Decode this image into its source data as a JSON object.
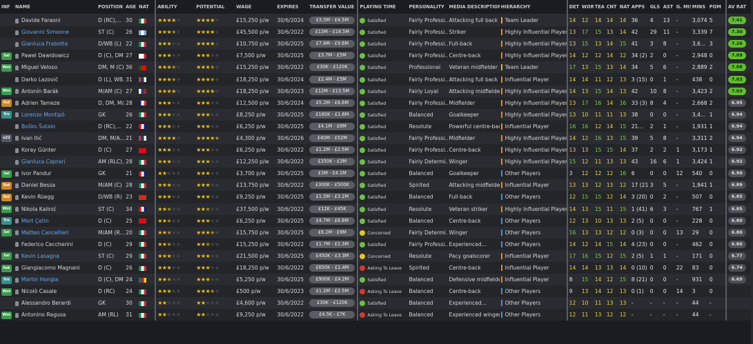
{
  "columns": [
    "INF",
    "NAME",
    "POSITION",
    "AGE",
    "NAT",
    "ABILITY",
    "POTENTIAL",
    "WAGE",
    "EXPIRES",
    "TRANSFER VALUE",
    "PLAYING TIME",
    "PERSONALITY",
    "MEDIA DESCRIPTION",
    "HIERARCHY",
    "DET",
    "WOR",
    "TEA",
    "CNT",
    "NAT",
    "APPS",
    "GLS",
    "AST",
    "G. MIS",
    "MINS",
    "POM",
    "AV RAT"
  ],
  "rows": [
    {
      "inf": "",
      "name": "Davide Faraoni",
      "blue": false,
      "pos": "D (RC),...",
      "age": "30",
      "flag": "it",
      "ab": 4,
      "abh": 0,
      "pot": 4,
      "poth": 0,
      "wage": "£15,250 p/w",
      "exp": "30/6/2024",
      "tv": "£3.5M - £4.5M",
      "pt": "Satisfied",
      "ptc": "green",
      "pers": "Fairly Professi...",
      "media": "Attacking full back",
      "hier": "Team Leader",
      "hc": "leader",
      "det": "14",
      "wor": "12",
      "tea": "14",
      "cnt": "14",
      "nat": "14",
      "apps": "36",
      "gls": "4",
      "ast": "13",
      "gmis": "-",
      "mins": "3,074",
      "pom": "5",
      "avr": "7.41",
      "rh": true
    },
    {
      "inf": "",
      "name": "Giovanni Simeone",
      "blue": true,
      "pos": "ST (C)",
      "age": "26",
      "flag": "ar",
      "ab": 3,
      "abh": 1,
      "pot": 4,
      "poth": 0,
      "wage": "£45,500 p/w",
      "exp": "30/6/2022",
      "tv": "£13M - £18.5M",
      "pt": "Satisfied",
      "ptc": "green",
      "pers": "Fairly Professi...",
      "media": "Striker",
      "hier": "Highly Influential Player",
      "hc": "high",
      "det": "13",
      "wor": "17",
      "tea": "15",
      "cnt": "13",
      "nat": "14",
      "apps": "42",
      "gls": "29",
      "ast": "11",
      "gmis": "-",
      "mins": "3,339",
      "pom": "7",
      "avr": "7.30",
      "rh": true
    },
    {
      "inf": "",
      "name": "Gianluca Frabotta",
      "blue": true,
      "pos": "D/WB (L)",
      "age": "22",
      "flag": "it",
      "ab": 3,
      "abh": 0,
      "pot": 4,
      "poth": 0,
      "wage": "£10,750 p/w",
      "exp": "30/6/2025",
      "tv": "£7.8M - £9.6M",
      "pt": "Satisfied",
      "ptc": "green",
      "pers": "Fairly Professi...",
      "media": "Full-back",
      "hier": "Highly Influential Player",
      "hc": "high",
      "det": "13",
      "wor": "15",
      "tea": "13",
      "cnt": "14",
      "nat": "15",
      "apps": "41",
      "gls": "3",
      "ast": "8",
      "gmis": "-",
      "mins": "3,6...",
      "pom": "3",
      "avr": "7.26",
      "rh": true
    },
    {
      "inf": "Sel",
      "name": "Pawel Dawidowicz",
      "blue": false,
      "pos": "D (C), DM",
      "age": "27",
      "flag": "pl",
      "ab": 3,
      "abh": 0,
      "pot": 3,
      "poth": 0,
      "wage": "£7,500 p/w",
      "exp": "30/6/2025",
      "tv": "£3.7M - £5M",
      "pt": "Satisfied",
      "ptc": "green",
      "pers": "Fairly Professi...",
      "media": "Centre-back",
      "hier": "Highly Influential Player",
      "hc": "high",
      "det": "14",
      "wor": "12",
      "tea": "12",
      "cnt": "14",
      "nat": "12",
      "apps": "34 (2)",
      "gls": "2",
      "ast": "0",
      "gmis": "-",
      "mins": "2,948",
      "pom": "0",
      "avr": "7.09",
      "rh": true
    },
    {
      "inf": "Wnt",
      "name": "Miguel Veloso",
      "blue": false,
      "pos": "DM, M (C)",
      "age": "36",
      "flag": "pt",
      "ab": 3,
      "abh": 1,
      "pot": 3,
      "poth": 1,
      "wage": "£15,250 p/w",
      "exp": "30/6/2022",
      "tv": "£30K - £120K",
      "pt": "Satisfied",
      "ptc": "green",
      "pers": "Professional",
      "media": "Veteran midfielder",
      "hier": "Team Leader",
      "hc": "leader",
      "det": "17",
      "wor": "13",
      "tea": "15",
      "cnt": "13",
      "nat": "14",
      "apps": "34",
      "gls": "5",
      "ast": "6",
      "gmis": "-",
      "mins": "2,889",
      "pom": "2",
      "avr": "7.08",
      "rh": true
    },
    {
      "inf": "",
      "name": "Darko Lazović",
      "blue": false,
      "pos": "D (L), WB...",
      "age": "31",
      "flag": "rs",
      "ab": 3,
      "abh": 1,
      "pot": 3,
      "poth": 1,
      "wage": "£18,250 p/w",
      "exp": "30/6/2024",
      "tv": "£2.4M - £5M",
      "pt": "Satisfied",
      "ptc": "green",
      "pers": "Fairly Professi...",
      "media": "Attacking full back",
      "hier": "Influential Player",
      "hc": "inf",
      "det": "14",
      "wor": "14",
      "tea": "11",
      "cnt": "12",
      "nat": "13",
      "apps": "3 (15)",
      "gls": "0",
      "ast": "1",
      "gmis": "-",
      "mins": "438",
      "pom": "0",
      "avr": "7.03",
      "rh": true
    },
    {
      "inf": "Wnt",
      "name": "Antonín Barák",
      "blue": false,
      "pos": "M/AM (C)",
      "age": "27",
      "flag": "cz",
      "ab": 4,
      "abh": 0,
      "pot": 4,
      "poth": 0,
      "wage": "£18,250 p/w",
      "exp": "30/6/2023",
      "tv": "£12M - £13.5M",
      "pt": "Satisfied",
      "ptc": "green",
      "pers": "Fairly Loyal",
      "media": "Attacking midfielder",
      "hier": "Highly Influential Player",
      "hc": "high",
      "det": "14",
      "wor": "13",
      "tea": "15",
      "cnt": "14",
      "nat": "13",
      "apps": "42",
      "gls": "10",
      "ast": "8",
      "gmis": "-",
      "mins": "3,423",
      "pom": "2",
      "avr": "7.03",
      "rh": true
    },
    {
      "inf": "Rst",
      "name": "Adrien Tameze",
      "blue": false,
      "pos": "D, DM, M/A...",
      "age": "28",
      "flag": "fr",
      "ab": 3,
      "abh": 0,
      "pot": 3,
      "poth": 0,
      "wage": "£12,500 p/w",
      "exp": "30/6/2024",
      "tv": "£5.2M - £6.6M",
      "pt": "Satisfied",
      "ptc": "green",
      "pers": "Fairly Professi...",
      "media": "Midfielder",
      "hier": "Highly Influential Player",
      "hc": "high",
      "det": "13",
      "wor": "17",
      "tea": "16",
      "cnt": "14",
      "nat": "16",
      "apps": "33 (3)",
      "gls": "8",
      "ast": "4",
      "gmis": "-",
      "mins": "2,668",
      "pom": "2",
      "avr": "6.95",
      "rh": false
    },
    {
      "inf": "Trn",
      "name": "Lorenzo Montipò",
      "blue": true,
      "pos": "GK",
      "age": "26",
      "flag": "it",
      "ab": 3,
      "abh": 0,
      "pot": 3,
      "poth": 0,
      "wage": "£8,250 p/w",
      "exp": "30/6/2025",
      "tv": "£160K - £1.6M",
      "pt": "Satisfied",
      "ptc": "green",
      "pers": "Balanced",
      "media": "Goalkeeper",
      "hier": "Highly Influential Player",
      "hc": "high",
      "det": "13",
      "wor": "10",
      "tea": "11",
      "cnt": "11",
      "nat": "13",
      "apps": "38",
      "gls": "0",
      "ast": "0",
      "gmis": "-",
      "mins": "3,4...",
      "pom": "1",
      "avr": "6.94",
      "rh": false
    },
    {
      "inf": "",
      "name": "Boško Šutalo",
      "blue": true,
      "pos": "D (RC),...",
      "age": "22",
      "flag": "hr",
      "ab": 3,
      "abh": 0,
      "pot": 3,
      "poth": 0,
      "wage": "£6,250 p/w",
      "exp": "30/6/2025",
      "tv": "£4.1M - £6M",
      "pt": "Satisfied",
      "ptc": "green",
      "pers": "Resolute",
      "media": "Powerful centre-back",
      "hier": "Influential Player",
      "hc": "inf",
      "det": "16",
      "wor": "16",
      "tea": "12",
      "cnt": "14",
      "nat": "15",
      "apps": "21...",
      "gls": "2",
      "ast": "1",
      "gmis": "-",
      "mins": "1,931",
      "pom": "1",
      "avr": "6.94",
      "rh": false
    },
    {
      "inf": "u22",
      "name": "Ivan Ilić",
      "blue": false,
      "pos": "DM, M/A...",
      "age": "21",
      "flag": "rs",
      "ab": 4,
      "abh": 0,
      "pot": 4,
      "poth": 1,
      "wage": "£4,300 p/w",
      "exp": "30/6/2026",
      "tv": "£40M - £52M",
      "pt": "Satisfied",
      "ptc": "green",
      "pers": "Fairly Professi...",
      "media": "Midfielder",
      "hier": "Highly Influential Player",
      "hc": "high",
      "det": "14",
      "wor": "12",
      "tea": "16",
      "cnt": "13",
      "nat": "15",
      "apps": "39",
      "gls": "5",
      "ast": "8",
      "gmis": "-",
      "mins": "3,311",
      "pom": "2",
      "avr": "6.94",
      "rh": false
    },
    {
      "inf": "",
      "name": "Koray Günter",
      "blue": false,
      "pos": "D (C)",
      "age": "27",
      "flag": "tr",
      "ab": 3,
      "abh": 0,
      "pot": 3,
      "poth": 0,
      "wage": "£6,250 p/w",
      "exp": "30/6/2022",
      "tv": "£1.2M - £2.5M",
      "pt": "Satisfied",
      "ptc": "green",
      "pers": "Fairly Professi...",
      "media": "Centre-back",
      "hier": "Highly Influential Player",
      "hc": "high",
      "det": "13",
      "wor": "13",
      "tea": "15",
      "cnt": "15",
      "nat": "14",
      "apps": "37",
      "gls": "2",
      "ast": "2",
      "gmis": "1",
      "mins": "3,173",
      "pom": "1",
      "avr": "6.92",
      "rh": false
    },
    {
      "inf": "",
      "name": "Gianluca Caprari",
      "blue": true,
      "pos": "AM (RLC),...",
      "age": "28",
      "flag": "it",
      "ab": 3,
      "abh": 0,
      "pot": 3,
      "poth": 0,
      "wage": "£12,250 p/w",
      "exp": "30/6/2022",
      "tv": "£350K - £3M",
      "pt": "Satisfied",
      "ptc": "green",
      "pers": "Fairly Determi...",
      "media": "Winger",
      "hier": "Highly Influential Player",
      "hc": "high",
      "det": "15",
      "wor": "12",
      "tea": "11",
      "cnt": "13",
      "nat": "13",
      "apps": "43",
      "gls": "16",
      "ast": "6",
      "gmis": "1",
      "mins": "3,424",
      "pom": "1",
      "avr": "6.92",
      "rh": false
    },
    {
      "inf": "Sel",
      "name": "Ivor Pandur",
      "blue": false,
      "pos": "GK",
      "age": "21",
      "flag": "hr",
      "ab": 2,
      "abh": 0,
      "pot": 3,
      "poth": 0,
      "wage": "£3,700 p/w",
      "exp": "30/6/2025",
      "tv": "£3M - £4.1M",
      "pt": "Satisfied",
      "ptc": "green",
      "pers": "Balanced",
      "media": "Goalkeeper",
      "hier": "Other Players",
      "hc": "other",
      "det": "3",
      "wor": "12",
      "tea": "12",
      "cnt": "12",
      "nat": "16",
      "apps": "6",
      "gls": "0",
      "ast": "0",
      "gmis": "12",
      "mins": "540",
      "pom": "0",
      "avr": "6.90",
      "rh": false
    },
    {
      "inf": "Rst",
      "name": "Daniel Bessa",
      "blue": false,
      "pos": "M/AM (C)",
      "age": "28",
      "flag": "it",
      "ab": 3,
      "abh": 0,
      "pot": 3,
      "poth": 0,
      "wage": "£13,750 p/w",
      "exp": "30/6/2022",
      "tv": "£300K - £500K",
      "pt": "Satisfied",
      "ptc": "green",
      "pers": "Spirited",
      "media": "Attacking midfielder",
      "hier": "Influential Player",
      "hc": "inf",
      "det": "13",
      "wor": "13",
      "tea": "12",
      "cnt": "13",
      "nat": "12",
      "apps": "17 (21)",
      "gls": "3",
      "ast": "5",
      "gmis": "-",
      "mins": "1,941",
      "pom": "1",
      "avr": "6.89",
      "rh": false
    },
    {
      "inf": "Rst",
      "name": "Kevin Rüegg",
      "blue": false,
      "pos": "D/WB (R)",
      "age": "23",
      "flag": "ch",
      "ab": 3,
      "abh": 0,
      "pot": 3,
      "poth": 0,
      "wage": "£9,250 p/w",
      "exp": "30/6/2025",
      "tv": "£1.5M - £3.2M",
      "pt": "Satisfied",
      "ptc": "green",
      "pers": "Balanced",
      "media": "Full-back",
      "hier": "Other Players",
      "hc": "other",
      "det": "12",
      "wor": "15",
      "tea": "15",
      "cnt": "12",
      "nat": "14",
      "apps": "3 (20)",
      "gls": "0",
      "ast": "2",
      "gmis": "-",
      "mins": "507",
      "pom": "0",
      "avr": "6.85",
      "rh": false
    },
    {
      "inf": "Wnt",
      "name": "Nikola Kalinić",
      "blue": false,
      "pos": "ST (C)",
      "age": "34",
      "flag": "hr",
      "ab": 2,
      "abh": 1,
      "pot": 2,
      "poth": 1,
      "wage": "£37,500 p/w",
      "exp": "30/6/2022",
      "tv": "£12K - £45K",
      "pt": "Satisfied",
      "ptc": "green",
      "pers": "Resolute",
      "media": "Veteran striker",
      "hier": "Highly Influential Player",
      "hc": "high",
      "det": "14",
      "wor": "13",
      "tea": "15",
      "cnt": "11",
      "nat": "15",
      "apps": "1 (41)",
      "gls": "6",
      "ast": "3",
      "gmis": "-",
      "mins": "767",
      "pom": "1",
      "avr": "6.85",
      "rh": false
    },
    {
      "inf": "Trn",
      "name": "Mert Çetin",
      "blue": true,
      "pos": "D (C)",
      "age": "25",
      "flag": "tr",
      "ab": 2,
      "abh": 1,
      "pot": 3,
      "poth": 0,
      "wage": "£6,250 p/w",
      "exp": "30/6/2025",
      "tv": "£4.7M - £6.8M",
      "pt": "Satisfied",
      "ptc": "green",
      "pers": "Balanced",
      "media": "Centre-back",
      "hier": "Other Players",
      "hc": "other",
      "det": "12",
      "wor": "13",
      "tea": "10",
      "cnt": "13",
      "nat": "13",
      "apps": "2 (5)",
      "gls": "0",
      "ast": "0",
      "gmis": "-",
      "mins": "228",
      "pom": "0",
      "avr": "6.80",
      "rh": false
    },
    {
      "inf": "Sel",
      "name": "Matteo Cancellieri",
      "blue": true,
      "pos": "M/AM (R...",
      "age": "20",
      "flag": "it",
      "ab": 2,
      "abh": 1,
      "pot": 3,
      "poth": 1,
      "wage": "£15,750 p/w",
      "exp": "30/6/2025",
      "tv": "£6.2M - £9M",
      "pt": "Concerned",
      "ptc": "yellow",
      "pers": "Fairly Determi...",
      "media": "Winger",
      "hier": "Other Players",
      "hc": "other",
      "det": "16",
      "wor": "13",
      "tea": "13",
      "cnt": "12",
      "nat": "12",
      "apps": "0 (3)",
      "gls": "0",
      "ast": "0",
      "gmis": "13",
      "mins": "29",
      "pom": "0",
      "avr": "6.80",
      "rh": false
    },
    {
      "inf": "",
      "name": "Federico Ceccherini",
      "blue": false,
      "pos": "D (C)",
      "age": "29",
      "flag": "it",
      "ab": 2,
      "abh": 1,
      "pot": 2,
      "poth": 1,
      "wage": "£15,250 p/w",
      "exp": "30/6/2022",
      "tv": "£1.7M - £2.3M",
      "pt": "Satisfied",
      "ptc": "green",
      "pers": "Fairly Professi...",
      "media": "Experienced...",
      "hier": "Other Players",
      "hc": "other",
      "det": "14",
      "wor": "12",
      "tea": "14",
      "cnt": "15",
      "nat": "14",
      "apps": "4 (23)",
      "gls": "0",
      "ast": "0",
      "gmis": "-",
      "mins": "462",
      "pom": "0",
      "avr": "6.80",
      "rh": false
    },
    {
      "inf": "Sel",
      "name": "Kevin Lasagna",
      "blue": true,
      "pos": "ST (C)",
      "age": "29",
      "flag": "it",
      "ab": 3,
      "abh": 0,
      "pot": 3,
      "poth": 0,
      "wage": "£21,500 p/w",
      "exp": "30/6/2025",
      "tv": "£450K - £3.3M",
      "pt": "Concerned",
      "ptc": "yellow",
      "pers": "Resolute",
      "media": "Pacy goalscorer",
      "hier": "Influential Player",
      "hc": "inf",
      "det": "17",
      "wor": "16",
      "tea": "15",
      "cnt": "12",
      "nat": "15",
      "apps": "2 (5)",
      "gls": "1",
      "ast": "1",
      "gmis": "-",
      "mins": "171",
      "pom": "0",
      "avr": "6.77",
      "rh": false
    },
    {
      "inf": "Ask",
      "name": "Giangiacomo Magnani",
      "blue": false,
      "pos": "D (C)",
      "age": "26",
      "flag": "it",
      "ab": 3,
      "abh": 0,
      "pot": 3,
      "poth": 0,
      "wage": "£18,250 p/w",
      "exp": "30/6/2022",
      "tv": "£650K - £1.4M",
      "pt": "Asking To Leave",
      "ptc": "red",
      "pers": "Spirited",
      "media": "Centre-back",
      "hier": "Influential Player",
      "hc": "inf",
      "det": "14",
      "wor": "14",
      "tea": "13",
      "cnt": "13",
      "nat": "14",
      "apps": "0 (10)",
      "gls": "0",
      "ast": "0",
      "gmis": "22",
      "mins": "83",
      "pom": "0",
      "avr": "6.74",
      "rh": false
    },
    {
      "inf": "Trn",
      "name": "Martin Hongla",
      "blue": true,
      "pos": "D (C), DM",
      "age": "24",
      "flag": "cm",
      "ab": 2,
      "abh": 1,
      "pot": 3,
      "poth": 0,
      "wage": "£5,250 p/w",
      "exp": "30/6/2025",
      "tv": "£900K - £4.2M",
      "pt": "Satisfied",
      "ptc": "green",
      "pers": "Balanced",
      "media": "Defensive midfielder",
      "hier": "Influential Player",
      "hc": "inf",
      "det": "8",
      "wor": "15",
      "tea": "14",
      "cnt": "12",
      "nat": "15",
      "apps": "8 (21)",
      "gls": "0",
      "ast": "0",
      "gmis": "-",
      "mins": "931",
      "pom": "0",
      "avr": "6.69",
      "rh": false
    },
    {
      "inf": "Wnt",
      "name": "Nicolò Casale",
      "blue": false,
      "pos": "D (RC)",
      "age": "24",
      "flag": "it",
      "ab": 3,
      "abh": 0,
      "pot": 3,
      "poth": 1,
      "wage": "£500 p/w",
      "exp": "30/6/2023",
      "tv": "£1.2M - £2.5M",
      "pt": "Asking To Leave",
      "ptc": "red",
      "pers": "Balanced",
      "media": "Centre-back",
      "hier": "Other Players",
      "hc": "other",
      "det": "9",
      "wor": "13",
      "tea": "14",
      "cnt": "12",
      "nat": "13",
      "apps": "0 (1)",
      "gls": "0",
      "ast": "0",
      "gmis": "14",
      "mins": "3",
      "pom": "0",
      "avr": "",
      "rh": false
    },
    {
      "inf": "",
      "name": "Alessandro Berardi",
      "blue": false,
      "pos": "GK",
      "age": "30",
      "flag": "it",
      "ab": 2,
      "abh": 0,
      "pot": 2,
      "poth": 0,
      "wage": "£4,600 p/w",
      "exp": "30/6/2022",
      "tv": "£30K - £120K",
      "pt": "Satisfied",
      "ptc": "green",
      "pers": "Balanced",
      "media": "Experienced...",
      "hier": "Other Players",
      "hc": "other",
      "det": "12",
      "wor": "10",
      "tea": "11",
      "cnt": "13",
      "nat": "13",
      "apps": "-",
      "gls": "-",
      "ast": "-",
      "gmis": "-",
      "mins": "44",
      "pom": "-",
      "avr": "",
      "rh": false
    },
    {
      "inf": "Wnt",
      "name": "Antonino Ragusa",
      "blue": false,
      "pos": "AM (RL)",
      "age": "31",
      "flag": "it",
      "ab": 2,
      "abh": 0,
      "pot": 2,
      "poth": 0,
      "wage": "£9,250 p/w",
      "exp": "30/6/2022",
      "tv": "£4.5K - £7K",
      "pt": "Asking To Leave",
      "ptc": "red",
      "pers": "Balanced",
      "media": "Experienced winger",
      "hier": "Other Players",
      "hc": "other",
      "det": "12",
      "wor": "11",
      "tea": "13",
      "cnt": "12",
      "nat": "12",
      "apps": "-",
      "gls": "-",
      "ast": "-",
      "gmis": "-",
      "mins": "44",
      "pom": "-",
      "avr": "",
      "rh": false
    }
  ],
  "flag_colors": {
    "it": [
      "#009246",
      "#ffffff",
      "#ce2b37"
    ],
    "ar": [
      "#74acdf",
      "#ffffff",
      "#74acdf"
    ],
    "pl": [
      "#ffffff",
      "#ffffff",
      "#dc143c"
    ],
    "pt": [
      "#006600",
      "#ff0000",
      "#ff0000"
    ],
    "rs": [
      "#c6363c",
      "#0c4076",
      "#ffffff"
    ],
    "cz": [
      "#ffffff",
      "#11457e",
      "#d7141a"
    ],
    "fr": [
      "#002395",
      "#ffffff",
      "#ed2939"
    ],
    "hr": [
      "#ff0000",
      "#ffffff",
      "#171796"
    ],
    "tr": [
      "#e30a17",
      "#e30a17",
      "#e30a17"
    ],
    "ch": [
      "#d52b1e",
      "#d52b1e",
      "#d52b1e"
    ],
    "cm": [
      "#007a5e",
      "#ce1126",
      "#fcd116"
    ]
  }
}
